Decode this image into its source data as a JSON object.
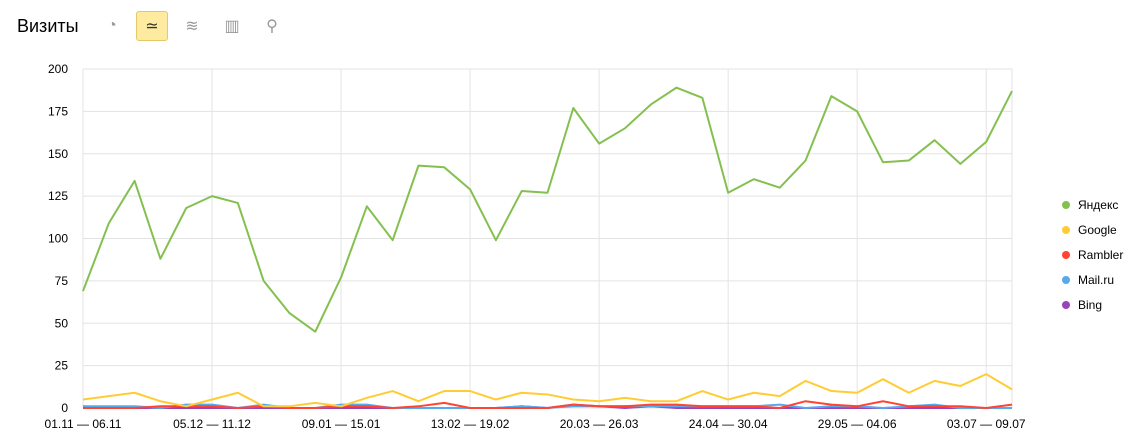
{
  "header": {
    "title": "Визиты",
    "chart_types": [
      {
        "icon": "pie-chart-icon",
        "glyph": "◔",
        "active": false
      },
      {
        "icon": "line-chart-icon",
        "glyph": "≃",
        "active": true
      },
      {
        "icon": "area-chart-icon",
        "glyph": "≋",
        "active": false
      },
      {
        "icon": "bar-chart-icon",
        "glyph": "▥",
        "active": false
      },
      {
        "icon": "map-pin-icon",
        "glyph": "⚲",
        "active": false
      }
    ]
  },
  "chart_data": {
    "type": "line",
    "ylim": [
      0,
      200
    ],
    "yticks": [
      0,
      25,
      50,
      75,
      100,
      125,
      150,
      175,
      200
    ],
    "grid": true,
    "legend_position": "right",
    "x_tick_labels": [
      "01.11 — 06.11",
      "05.12 — 11.12",
      "09.01 — 15.01",
      "13.02 — 19.02",
      "20.03 — 26.03",
      "24.04 — 30.04",
      "29.05 — 04.06",
      "03.07 — 09.07"
    ],
    "x_tick_every": 5,
    "series": [
      {
        "name": "Яндекс",
        "color": "#84c04f",
        "values": [
          69,
          109,
          134,
          88,
          118,
          125,
          121,
          75,
          56,
          45,
          77,
          119,
          99,
          143,
          142,
          129,
          99,
          128,
          127,
          177,
          156,
          165,
          179,
          189,
          183,
          127,
          135,
          130,
          146,
          184,
          175,
          145,
          146,
          158,
          144,
          157,
          187
        ]
      },
      {
        "name": "Google",
        "color": "#ffcc33",
        "values": [
          5,
          7,
          9,
          4,
          1,
          5,
          9,
          1,
          1,
          3,
          1,
          6,
          10,
          4,
          10,
          10,
          5,
          9,
          8,
          5,
          4,
          6,
          4,
          4,
          10,
          5,
          9,
          7,
          16,
          10,
          9,
          17,
          9,
          16,
          13,
          20,
          11
        ]
      },
      {
        "name": "Rambler",
        "color": "#ff4433",
        "values": [
          0,
          0,
          0,
          1,
          1,
          1,
          0,
          1,
          0,
          0,
          1,
          1,
          0,
          1,
          3,
          0,
          0,
          0,
          0,
          2,
          1,
          1,
          2,
          2,
          1,
          1,
          1,
          0,
          4,
          2,
          1,
          4,
          1,
          1,
          1,
          0,
          2
        ]
      },
      {
        "name": "Mail.ru",
        "color": "#55aaee",
        "values": [
          1,
          1,
          1,
          0,
          2,
          2,
          0,
          2,
          0,
          0,
          2,
          2,
          0,
          0,
          0,
          0,
          0,
          1,
          0,
          1,
          1,
          1,
          1,
          1,
          1,
          1,
          1,
          2,
          0,
          1,
          1,
          0,
          1,
          2,
          0,
          0,
          0
        ]
      },
      {
        "name": "Bing",
        "color": "#9944bb",
        "values": [
          1,
          0,
          0,
          0,
          0,
          0,
          0,
          0,
          0,
          0,
          0,
          0,
          0,
          0,
          0,
          0,
          0,
          1,
          0,
          2,
          1,
          0,
          1,
          0,
          0,
          0,
          0,
          0,
          0,
          0,
          0,
          0,
          0,
          0,
          0,
          0,
          0
        ]
      }
    ]
  }
}
